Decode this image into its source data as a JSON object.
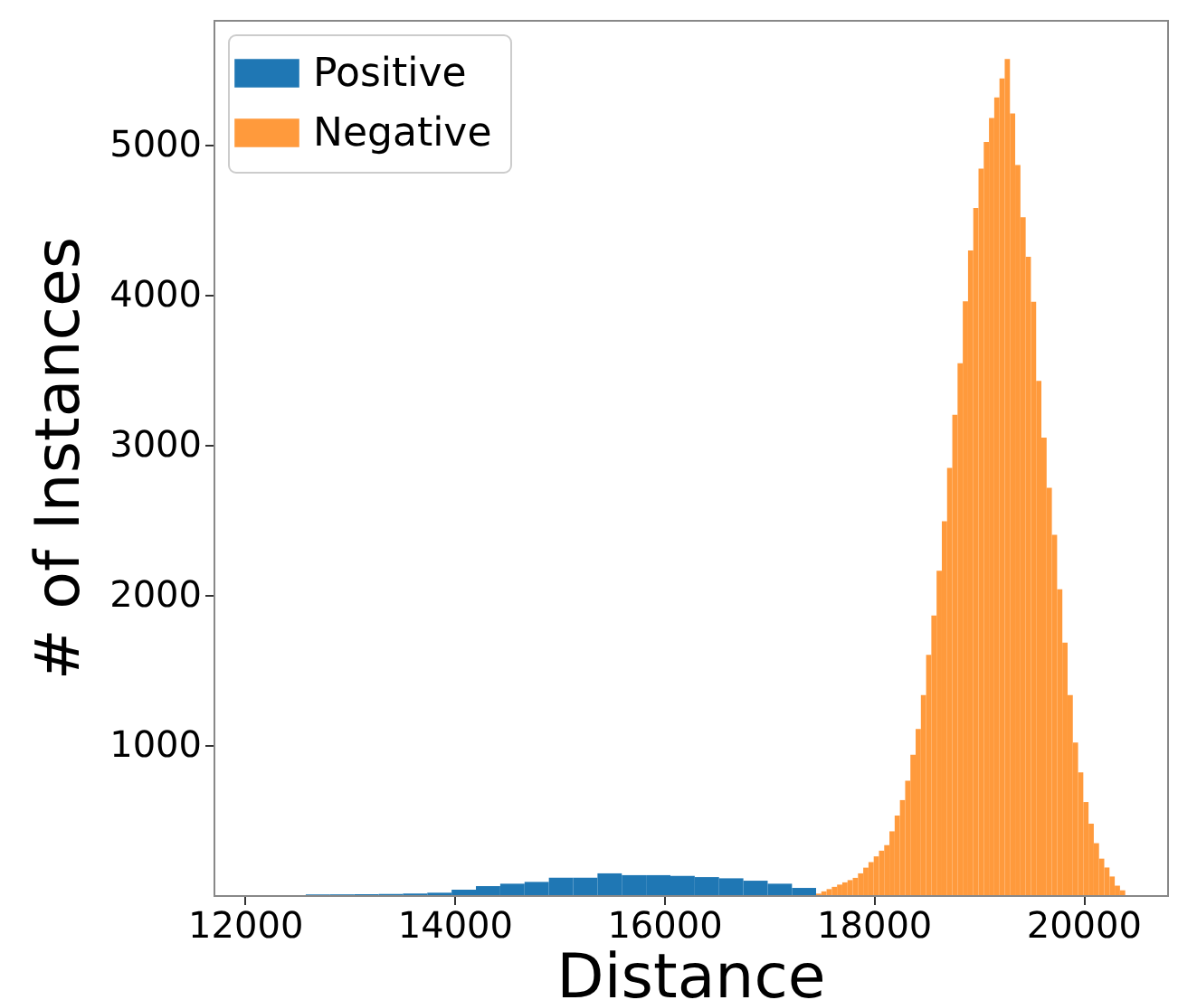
{
  "chart_data": {
    "type": "histogram",
    "xlabel": "Distance",
    "ylabel": "# of Instances",
    "xlim": [
      11700,
      20800
    ],
    "ylim": [
      0,
      5830
    ],
    "xticks": [
      12000,
      14000,
      16000,
      18000,
      20000
    ],
    "yticks": [
      1000,
      2000,
      3000,
      4000,
      5000
    ],
    "grid": false,
    "legend": "top left",
    "bins": [
      12580,
      12812,
      13044,
      13276,
      13508,
      13740,
      13972,
      14204,
      14436,
      14668,
      14900,
      15132,
      15364,
      15596,
      15828,
      16060,
      16292,
      16524,
      16756,
      16988,
      17220,
      17450,
      17500,
      17550,
      17600,
      17650,
      17700,
      17750,
      17800,
      17850,
      17900,
      17950,
      18000,
      18050,
      18100,
      18150,
      18200,
      18250,
      18300,
      18350,
      18400,
      18450,
      18500,
      18550,
      18600,
      18650,
      18700,
      18750,
      18800,
      18850,
      18900,
      18950,
      19000,
      19050,
      19100,
      19150,
      19200,
      19250,
      19300,
      19350,
      19400,
      19450,
      19500,
      19550,
      19600,
      19650,
      19700,
      19750,
      19800,
      19850,
      19900,
      19950,
      20000,
      20050,
      20100,
      20150,
      20200,
      20250,
      20300,
      20350,
      20400
    ],
    "series": [
      {
        "name": "Positive",
        "color": "#1f77b4",
        "values": [
          4,
          5,
          6,
          8,
          10,
          16,
          36,
          60,
          76,
          88,
          116,
          116,
          145,
          133,
          133,
          128,
          120,
          112,
          96,
          76,
          48,
          null,
          null,
          null,
          null,
          null,
          null,
          null,
          null,
          null,
          null,
          null,
          null,
          null,
          null,
          null,
          null,
          null,
          null,
          null,
          null,
          null,
          null,
          null,
          null,
          null,
          null,
          null,
          null,
          null,
          null,
          null,
          null,
          null,
          null,
          null,
          null,
          null,
          null,
          null,
          null,
          null,
          null,
          null,
          null,
          null,
          null,
          null,
          null,
          null,
          null,
          null,
          null,
          null,
          null,
          null,
          null,
          null,
          null,
          null
        ]
      },
      {
        "name": "Negative",
        "color": "#ff9a3c",
        "values": [
          null,
          null,
          null,
          null,
          null,
          null,
          null,
          null,
          null,
          null,
          null,
          null,
          null,
          null,
          null,
          null,
          null,
          null,
          null,
          null,
          null,
          10,
          25,
          40,
          55,
          70,
          85,
          100,
          115,
          145,
          183,
          220,
          258,
          296,
          333,
          425,
          530,
          633,
          762,
          935,
          1107,
          1333,
          1600,
          1862,
          2160,
          2490,
          2845,
          3200,
          3543,
          3955,
          4294,
          4577,
          4840,
          5017,
          5177,
          5314,
          5440,
          5570,
          5207,
          4864,
          4515,
          4252,
          3952,
          3425,
          3048,
          2713,
          2400,
          2037,
          1682,
          1333,
          1016,
          818,
          620,
          476,
          346,
          243,
          184,
          124,
          63,
          32
        ]
      }
    ]
  }
}
